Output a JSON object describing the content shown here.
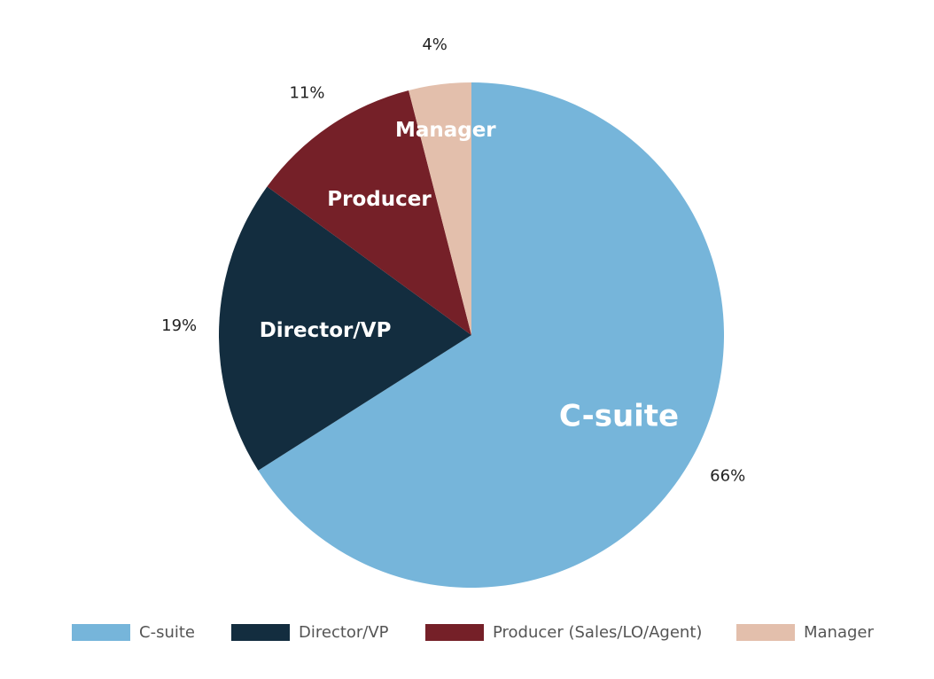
{
  "chart_data": {
    "type": "pie",
    "start_angle_deg": 0,
    "direction": "clockwise",
    "legend_position": "bottom",
    "slices": [
      {
        "legend": "C-suite",
        "label": "C-suite",
        "value": 66,
        "percent_label": "66%",
        "color": "#76b5da"
      },
      {
        "legend": "Director/VP",
        "label": "Director/VP",
        "value": 19,
        "percent_label": "19%",
        "color": "#132d3f"
      },
      {
        "legend": "Producer (Sales/LO/Agent)",
        "label": "Producer",
        "value": 11,
        "percent_label": "11%",
        "color": "#752028"
      },
      {
        "legend": "Manager",
        "label": "Manager",
        "value": 4,
        "percent_label": "4%",
        "color": "#e3bfac"
      }
    ]
  }
}
